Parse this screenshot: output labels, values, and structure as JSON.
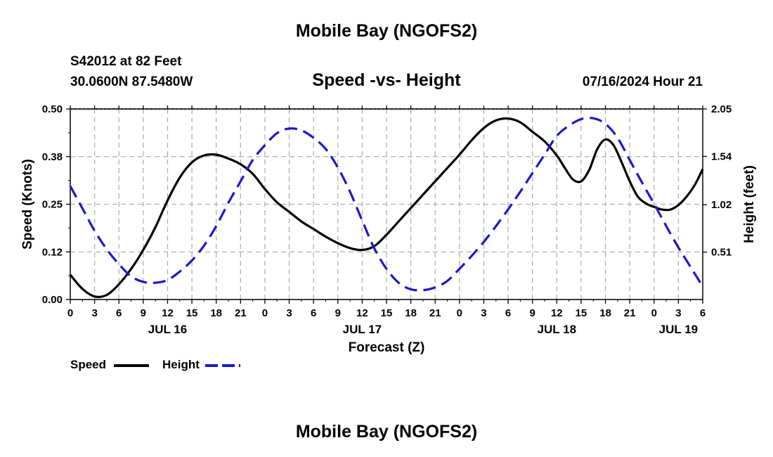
{
  "header": {
    "title": "Mobile Bay (NGOFS2)",
    "station": "S42012 at 82 Feet",
    "coords": "30.0600N  87.5480W",
    "subtitle": "Speed -vs- Height",
    "datetime": "07/16/2024 Hour 21"
  },
  "footer": {
    "title": "Mobile Bay (NGOFS2)"
  },
  "colors": {
    "speed": "#000000",
    "height": "#1a1acc",
    "grid": "#b0b0b0"
  },
  "chart_data": {
    "type": "line",
    "xlabel": "Forecast (Z)",
    "ylabel": "Speed (Knots)",
    "y2label": "Height (feet)",
    "xlim": [
      0,
      78
    ],
    "ylim": [
      0,
      0.5
    ],
    "y2lim": [
      0,
      2.05
    ],
    "grid": true,
    "legend_position": "bottom-left",
    "x_ticks": [
      0,
      3,
      6,
      9,
      12,
      15,
      18,
      21,
      24,
      27,
      30,
      33,
      36,
      39,
      42,
      45,
      48,
      51,
      54,
      57,
      60,
      63,
      66,
      69,
      72,
      75,
      78
    ],
    "x_tick_labels": [
      "0",
      "3",
      "6",
      "9",
      "12",
      "15",
      "18",
      "21",
      "0",
      "3",
      "6",
      "9",
      "12",
      "15",
      "18",
      "21",
      "0",
      "3",
      "6",
      "9",
      "12",
      "15",
      "18",
      "21",
      "0",
      "3",
      "6"
    ],
    "day_labels": [
      {
        "x": 12,
        "label": "JUL 16"
      },
      {
        "x": 36,
        "label": "JUL 17"
      },
      {
        "x": 60,
        "label": "JUL 18"
      },
      {
        "x": 75,
        "label": "JUL 19"
      }
    ],
    "y_ticks": [
      0.0,
      0.125,
      0.25,
      0.375,
      0.5
    ],
    "y_tick_labels": [
      "0.00",
      "0.12",
      "0.25",
      "0.38",
      "0.50"
    ],
    "y2_ticks": [
      0.51,
      1.02,
      1.54,
      2.05
    ],
    "y2_tick_labels": [
      "0.51",
      "1.02",
      "1.54",
      "2.05"
    ],
    "series": [
      {
        "name": "Speed",
        "axis": "left",
        "style": "solid",
        "x": [
          0,
          1.5,
          3,
          4.5,
          6,
          7.5,
          9,
          10.5,
          12,
          13.5,
          15,
          16.5,
          18,
          19.5,
          21,
          22.5,
          24,
          25.5,
          27,
          28.5,
          30,
          31.5,
          33,
          34.5,
          36,
          37.5,
          39,
          40.5,
          42,
          43.5,
          45,
          46.5,
          48,
          49.5,
          51,
          52.5,
          54,
          55.5,
          57,
          58.5,
          60,
          61,
          62,
          63,
          64,
          65,
          66,
          67,
          68,
          69,
          70,
          71,
          72,
          73,
          74,
          75,
          76,
          77,
          78
        ],
        "values": [
          0.065,
          0.028,
          0.008,
          0.012,
          0.04,
          0.08,
          0.13,
          0.19,
          0.26,
          0.32,
          0.36,
          0.378,
          0.38,
          0.37,
          0.355,
          0.33,
          0.29,
          0.255,
          0.23,
          0.205,
          0.185,
          0.165,
          0.148,
          0.135,
          0.13,
          0.14,
          0.17,
          0.205,
          0.24,
          0.275,
          0.31,
          0.345,
          0.38,
          0.418,
          0.45,
          0.47,
          0.475,
          0.465,
          0.44,
          0.415,
          0.378,
          0.345,
          0.315,
          0.31,
          0.34,
          0.395,
          0.42,
          0.405,
          0.36,
          0.31,
          0.27,
          0.252,
          0.243,
          0.236,
          0.236,
          0.248,
          0.27,
          0.3,
          0.342
        ]
      },
      {
        "name": "Height",
        "axis": "right",
        "style": "dashed",
        "x": [
          0,
          1.5,
          3,
          4.5,
          6,
          7.5,
          9,
          10.5,
          12,
          13.5,
          15,
          16.5,
          18,
          19.5,
          21,
          22.5,
          24,
          25.5,
          27,
          28.5,
          30,
          31.5,
          33,
          34.5,
          36,
          37.5,
          39,
          40.5,
          42,
          43.5,
          45,
          46.5,
          48,
          49.5,
          51,
          52.5,
          54,
          55.5,
          57,
          58.5,
          60,
          61.5,
          63,
          64.5,
          66,
          67.5,
          69,
          70.5,
          72,
          73.5,
          75,
          76.5,
          78
        ],
        "values": [
          1.22,
          0.98,
          0.74,
          0.54,
          0.38,
          0.25,
          0.19,
          0.18,
          0.21,
          0.3,
          0.42,
          0.58,
          0.79,
          1.04,
          1.27,
          1.5,
          1.66,
          1.79,
          1.84,
          1.82,
          1.74,
          1.62,
          1.42,
          1.16,
          0.85,
          0.55,
          0.33,
          0.18,
          0.11,
          0.1,
          0.13,
          0.2,
          0.33,
          0.47,
          0.62,
          0.79,
          0.97,
          1.16,
          1.36,
          1.56,
          1.76,
          1.87,
          1.94,
          1.95,
          1.89,
          1.74,
          1.5,
          1.26,
          1.03,
          0.79,
          0.56,
          0.35,
          0.14
        ]
      }
    ]
  }
}
